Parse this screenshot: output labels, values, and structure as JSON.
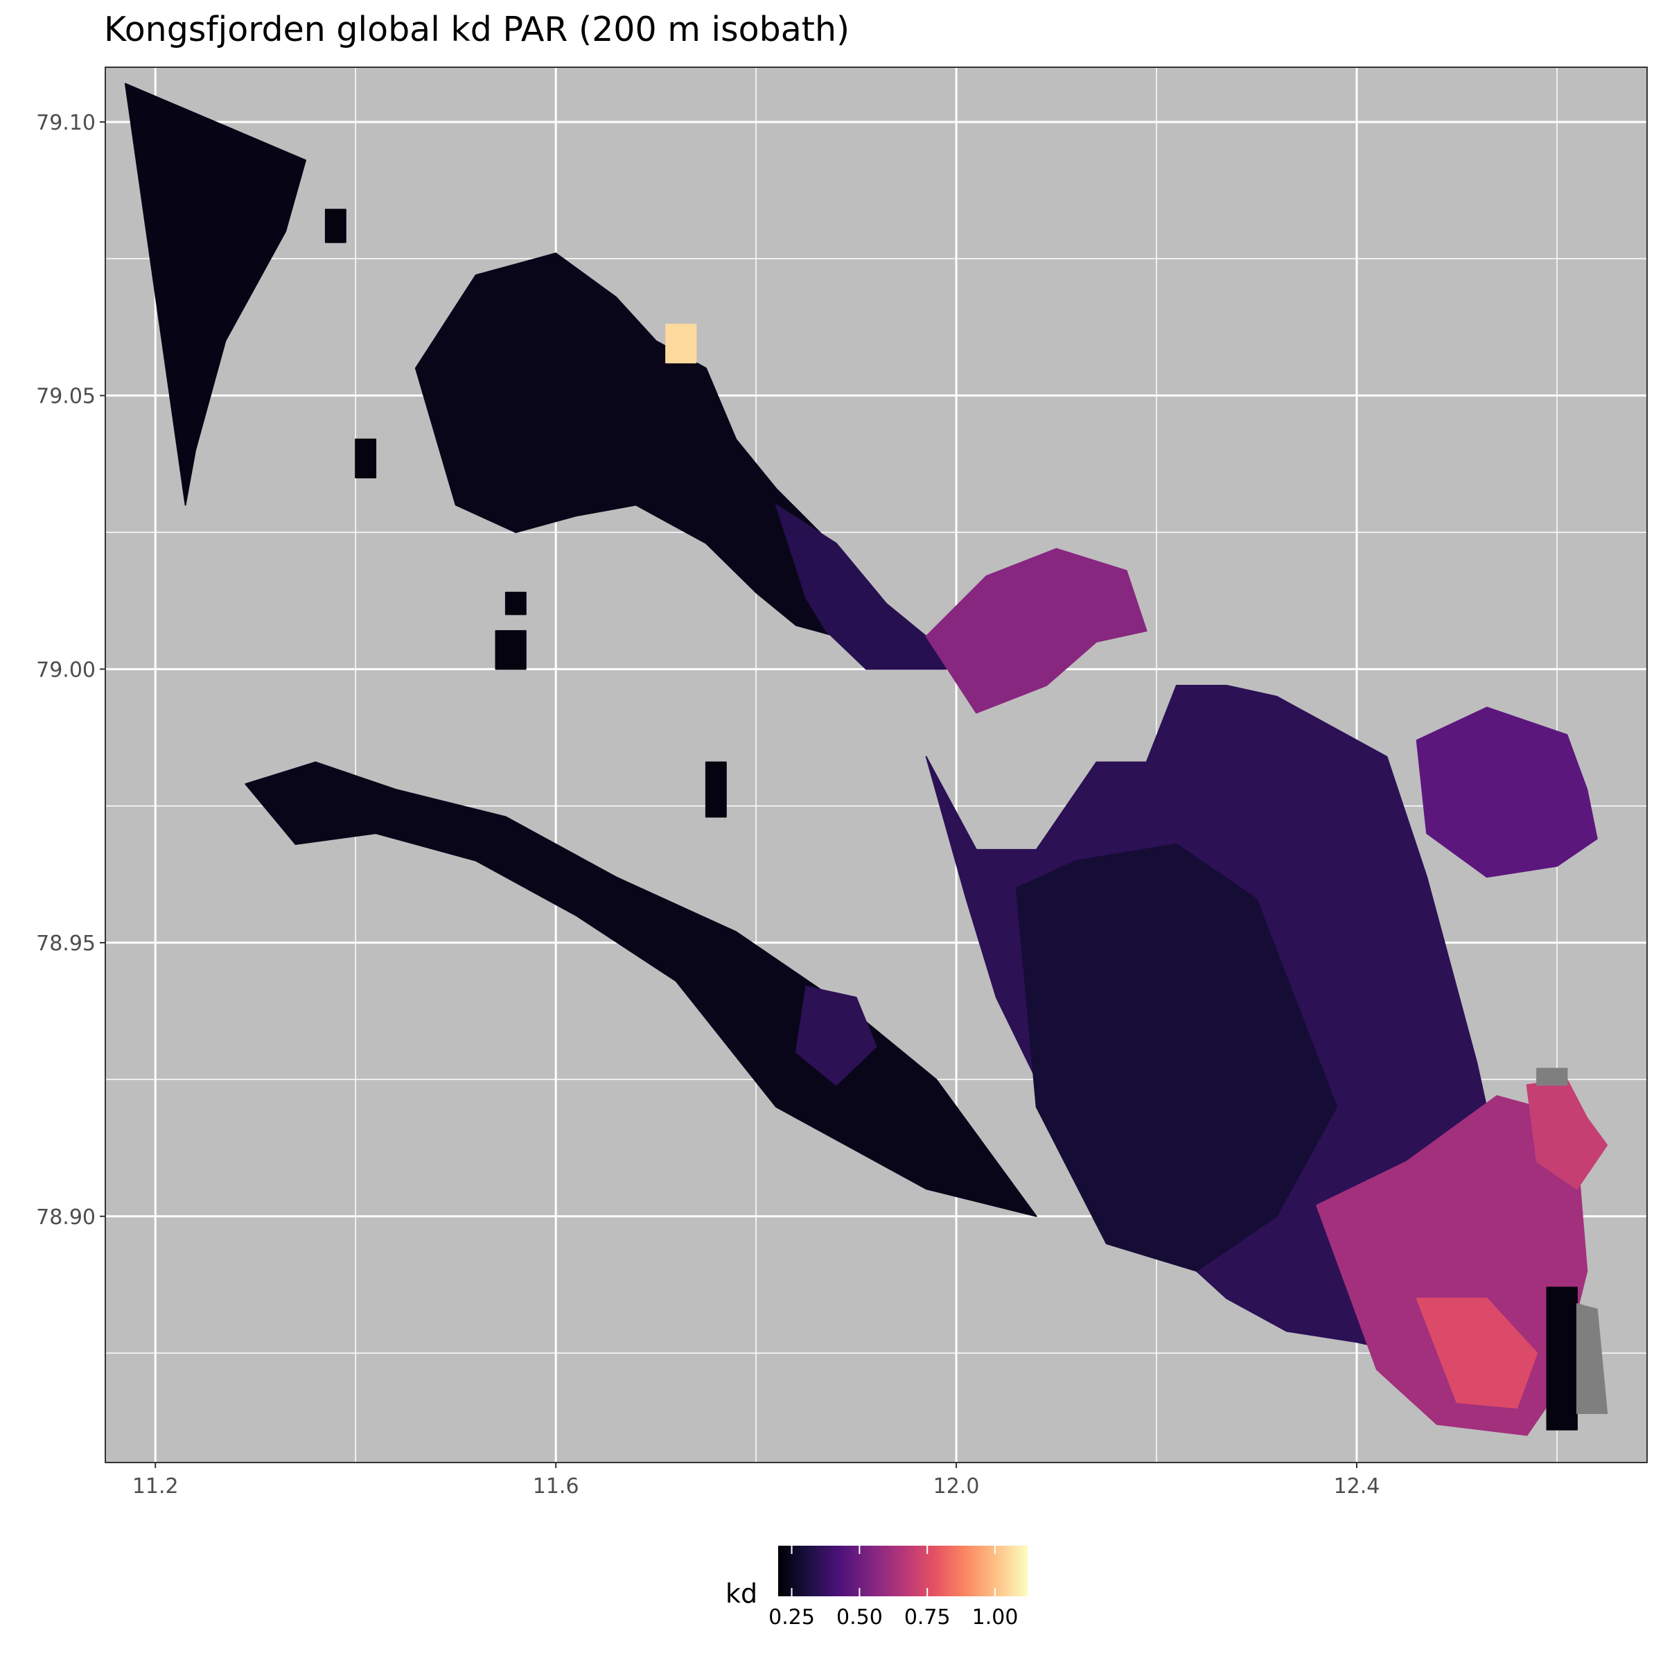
{
  "chart_data": {
    "type": "heatmap",
    "title": "Kongsfjorden global kd PAR (200 m isobath)",
    "xlabel": "",
    "ylabel": "",
    "xlim": [
      11.15,
      12.69
    ],
    "ylim": [
      78.855,
      79.11
    ],
    "x_ticks": [
      {
        "value": 11.2,
        "label": "11.2"
      },
      {
        "value": 11.6,
        "label": "11.6"
      },
      {
        "value": 12.0,
        "label": "12.0"
      },
      {
        "value": 12.4,
        "label": "12.4"
      }
    ],
    "x_minor_ticks": [
      11.4,
      11.8,
      12.2,
      12.6
    ],
    "y_ticks": [
      {
        "value": 78.9,
        "label": "78.90"
      },
      {
        "value": 78.95,
        "label": "78.95"
      },
      {
        "value": 79.0,
        "label": "79.00"
      },
      {
        "value": 79.05,
        "label": "79.05"
      },
      {
        "value": 79.1,
        "label": "79.10"
      }
    ],
    "y_minor_ticks": [
      78.875,
      78.925,
      78.975,
      79.025,
      79.075
    ],
    "grid": true,
    "panel_background": "#bebebe",
    "na_color": "#7f7f7f",
    "colorscale": "magma",
    "legend": {
      "title": "kd",
      "position": "bottom",
      "range": [
        0.2,
        1.12
      ],
      "ticks": [
        {
          "value": 0.25,
          "label": "0.25"
        },
        {
          "value": 0.5,
          "label": "0.50"
        },
        {
          "value": 0.75,
          "label": "0.75"
        },
        {
          "value": 1.0,
          "label": "1.00"
        }
      ]
    },
    "regions": [
      {
        "name": "northwest-triangle",
        "lon": [
          11.17,
          11.35,
          11.33,
          11.27,
          11.24,
          11.23,
          11.17
        ],
        "lat": [
          79.107,
          79.093,
          79.08,
          79.06,
          79.04,
          79.03,
          79.107
        ],
        "kd": 0.23
      },
      {
        "name": "islet-1",
        "lon": [
          11.37,
          11.39,
          11.39,
          11.37
        ],
        "lat": [
          79.084,
          79.084,
          79.078,
          79.078
        ],
        "kd": 0.22
      },
      {
        "name": "islet-2",
        "lon": [
          11.4,
          11.42,
          11.42,
          11.4
        ],
        "lat": [
          79.042,
          79.042,
          79.035,
          79.035
        ],
        "kd": 0.22
      },
      {
        "name": "islet-3",
        "lon": [
          11.55,
          11.57,
          11.57,
          11.55
        ],
        "lat": [
          79.014,
          79.014,
          79.01,
          79.01
        ],
        "kd": 0.22
      },
      {
        "name": "islet-4",
        "lon": [
          11.54,
          11.57,
          11.57,
          11.54
        ],
        "lat": [
          79.007,
          79.007,
          79.0,
          79.0
        ],
        "kd": 0.22
      },
      {
        "name": "islet-5",
        "lon": [
          11.75,
          11.77,
          11.77,
          11.75
        ],
        "lat": [
          78.983,
          78.983,
          78.973,
          78.973
        ],
        "kd": 0.22
      },
      {
        "name": "northern-basin",
        "lon": [
          11.46,
          11.52,
          11.6,
          11.66,
          11.7,
          11.75,
          11.78,
          11.82,
          11.88,
          11.91,
          11.97,
          11.88,
          11.84,
          11.8,
          11.75,
          11.72,
          11.68,
          11.62,
          11.56,
          11.5,
          11.46
        ],
        "lat": [
          79.055,
          79.072,
          79.076,
          79.068,
          79.06,
          79.055,
          79.042,
          79.033,
          79.022,
          79.014,
          79.006,
          79.006,
          79.008,
          79.014,
          79.023,
          79.026,
          79.03,
          79.028,
          79.025,
          79.03,
          79.055
        ],
        "kd": 0.24
      },
      {
        "name": "northern-basin-bright-edge",
        "lon": [
          11.71,
          11.74,
          11.74,
          11.71
        ],
        "lat": [
          79.063,
          79.063,
          79.056,
          79.056
        ],
        "kd": 1.05
      },
      {
        "name": "northern-channel",
        "lon": [
          11.82,
          11.88,
          11.93,
          11.97,
          11.99,
          11.91,
          11.87,
          11.85,
          11.82
        ],
        "lat": [
          79.03,
          79.023,
          79.012,
          79.006,
          79.0,
          79.0,
          79.007,
          79.013,
          79.03
        ],
        "kd": 0.34
      },
      {
        "name": "arm-north",
        "lon": [
          11.97,
          12.03,
          12.1,
          12.17,
          12.19,
          12.14,
          12.09,
          12.02,
          11.97
        ],
        "lat": [
          79.006,
          79.017,
          79.022,
          79.018,
          79.007,
          79.005,
          78.997,
          78.992,
          79.006
        ],
        "kd": 0.56
      },
      {
        "name": "western-arm",
        "lon": [
          11.29,
          11.36,
          11.44,
          11.55,
          11.66,
          11.78,
          11.9,
          11.98,
          12.02,
          12.08,
          11.97,
          11.9,
          11.82,
          11.72,
          11.62,
          11.52,
          11.42,
          11.34,
          11.29
        ],
        "lat": [
          78.979,
          78.983,
          78.978,
          78.973,
          78.962,
          78.952,
          78.937,
          78.925,
          78.915,
          78.9,
          78.905,
          78.912,
          78.92,
          78.943,
          78.955,
          78.965,
          78.97,
          78.968,
          78.979
        ],
        "kd": 0.24
      },
      {
        "name": "arm-south-tip",
        "lon": [
          11.85,
          11.9,
          11.92,
          11.88,
          11.84,
          11.85
        ],
        "lat": [
          78.942,
          78.94,
          78.931,
          78.924,
          78.93,
          78.942
        ],
        "kd": 0.35
      },
      {
        "name": "southern-basin",
        "lon": [
          11.97,
          12.02,
          12.08,
          12.14,
          12.19,
          12.22,
          12.27,
          12.32,
          12.43,
          12.47,
          12.52,
          12.55,
          12.57,
          12.54,
          12.5,
          12.45,
          12.4,
          12.33,
          12.27,
          12.21,
          12.15,
          12.1,
          12.08,
          12.04,
          12.01,
          11.97
        ],
        "lat": [
          78.984,
          78.967,
          78.967,
          78.983,
          78.983,
          78.997,
          78.997,
          78.995,
          78.984,
          78.962,
          78.928,
          78.903,
          78.878,
          78.864,
          78.868,
          78.875,
          78.877,
          78.879,
          78.885,
          78.895,
          78.905,
          78.914,
          78.925,
          78.94,
          78.958,
          78.984
        ],
        "kd": 0.35
      },
      {
        "name": "southern-basin-deep",
        "lon": [
          12.06,
          12.12,
          12.22,
          12.3,
          12.38,
          12.32,
          12.24,
          12.15,
          12.08,
          12.06
        ],
        "lat": [
          78.96,
          78.965,
          78.968,
          78.958,
          78.92,
          78.9,
          78.89,
          78.895,
          78.92,
          78.96
        ],
        "kd": 0.29
      },
      {
        "name": "east-lobe",
        "lon": [
          12.46,
          12.53,
          12.61,
          12.63,
          12.64,
          12.6,
          12.53,
          12.47,
          12.46
        ],
        "lat": [
          78.987,
          78.993,
          78.988,
          78.978,
          78.969,
          78.964,
          78.962,
          78.97,
          78.987
        ],
        "kd": 0.46
      },
      {
        "name": "southeast-shelf",
        "lon": [
          12.36,
          12.45,
          12.54,
          12.58,
          12.62,
          12.63,
          12.6,
          12.57,
          12.48,
          12.42,
          12.36
        ],
        "lat": [
          78.902,
          78.91,
          78.922,
          78.92,
          78.912,
          78.89,
          78.868,
          78.86,
          78.862,
          78.872,
          78.902
        ],
        "kd": 0.62
      },
      {
        "name": "southeast-shelf-core",
        "lon": [
          12.46,
          12.53,
          12.58,
          12.56,
          12.5,
          12.46
        ],
        "lat": [
          78.885,
          78.885,
          78.875,
          78.865,
          78.866,
          78.885
        ],
        "kd": 0.75
      },
      {
        "name": "southeast-hook",
        "lon": [
          12.57,
          12.61,
          12.63,
          12.65,
          12.62,
          12.58,
          12.57
        ],
        "lat": [
          78.924,
          78.925,
          78.918,
          78.913,
          78.905,
          78.91,
          78.924
        ],
        "kd": 0.7
      },
      {
        "name": "southeast-dark-strip",
        "lon": [
          12.59,
          12.62,
          12.62,
          12.59
        ],
        "lat": [
          78.887,
          78.887,
          78.861,
          78.861
        ],
        "kd": 0.22
      },
      {
        "name": "na-strip",
        "lon": [
          12.62,
          12.64,
          12.65,
          12.62
        ],
        "lat": [
          78.884,
          78.883,
          78.864,
          78.864
        ],
        "kd": null
      },
      {
        "name": "na-cap",
        "lon": [
          12.58,
          12.61,
          12.61,
          12.58
        ],
        "lat": [
          78.927,
          78.927,
          78.924,
          78.924
        ],
        "kd": null
      }
    ]
  }
}
